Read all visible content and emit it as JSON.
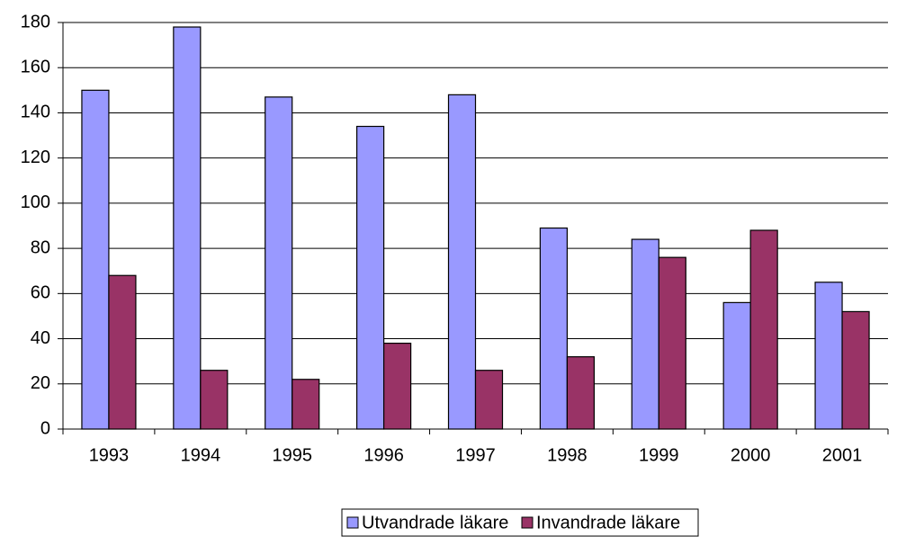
{
  "chart_data": {
    "type": "bar",
    "categories": [
      "1993",
      "1994",
      "1995",
      "1996",
      "1997",
      "1998",
      "1999",
      "2000",
      "2001"
    ],
    "series": [
      {
        "name": "Utvandrade läkare",
        "color": "#9999ff",
        "values": [
          150,
          178,
          147,
          134,
          148,
          89,
          84,
          56,
          65
        ]
      },
      {
        "name": "Invandrade läkare",
        "color": "#993366",
        "values": [
          68,
          26,
          22,
          38,
          26,
          32,
          76,
          88,
          52
        ]
      }
    ],
    "ylim": [
      0,
      180
    ],
    "yticks": [
      0,
      20,
      40,
      60,
      80,
      100,
      120,
      140,
      160,
      180
    ],
    "grid": true,
    "legend": "bottom"
  }
}
